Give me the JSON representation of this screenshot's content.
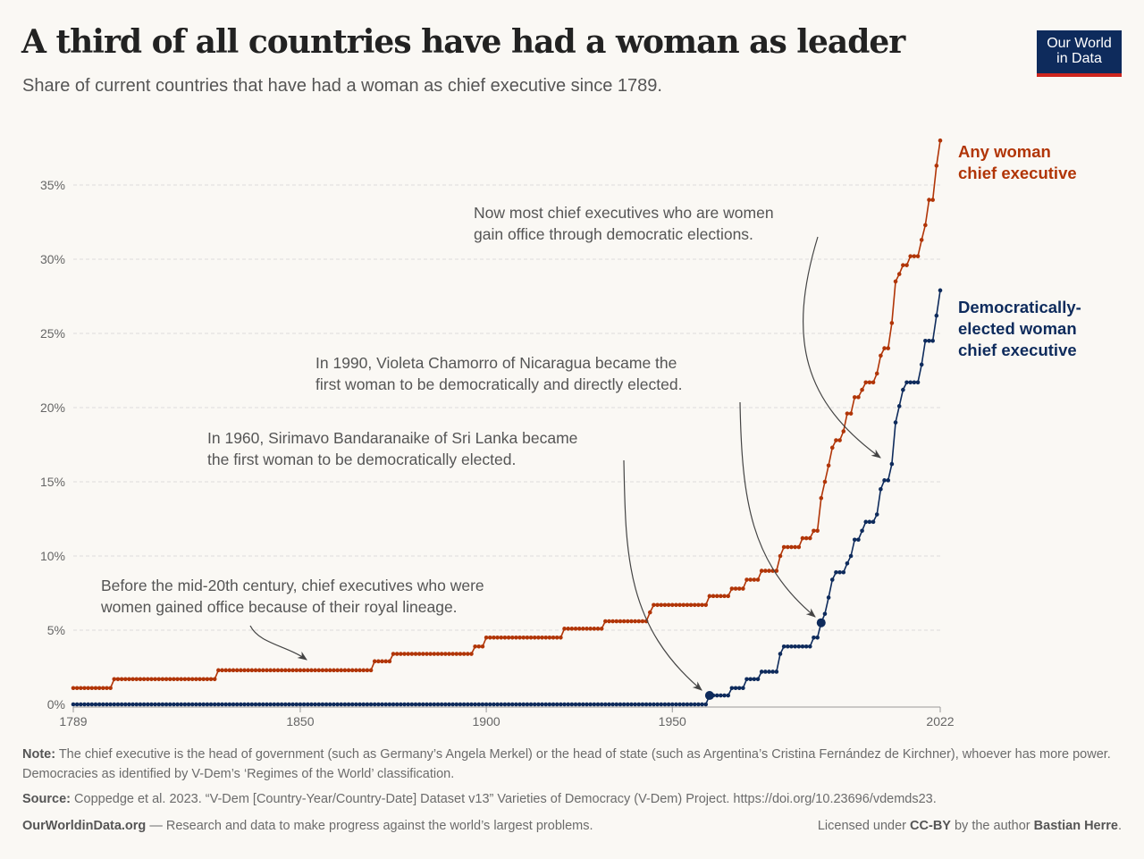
{
  "header": {
    "title": "A third of all countries have had a woman as leader",
    "subtitle": "Share of current countries that have had a woman as chief executive since 1789.",
    "logo_line1": "Our World",
    "logo_line2": "in Data"
  },
  "chart_data": {
    "type": "line",
    "title": "A third of all countries have had a woman as leader",
    "xlabel": "",
    "ylabel": "",
    "xlim": [
      1789,
      2022
    ],
    "ylim": [
      0,
      38
    ],
    "x_ticks": [
      "1789",
      "1850",
      "1900",
      "1950",
      "2022"
    ],
    "y_ticks": [
      "0%",
      "5%",
      "10%",
      "15%",
      "20%",
      "25%",
      "30%",
      "35%"
    ],
    "grid": "horizontal dashed",
    "series": [
      {
        "name": "Any woman chief executive",
        "label_lines": [
          "Any woman",
          "chief executive"
        ],
        "color": "#b13507",
        "steps": [
          [
            1789,
            1.1
          ],
          [
            1800,
            1.7
          ],
          [
            1828,
            2.3
          ],
          [
            1870,
            2.9
          ],
          [
            1875,
            3.4
          ],
          [
            1897,
            3.9
          ],
          [
            1900,
            4.5
          ],
          [
            1921,
            5.1
          ],
          [
            1932,
            5.6
          ],
          [
            1944,
            6.2
          ],
          [
            1945,
            6.7
          ],
          [
            1960,
            7.3
          ],
          [
            1966,
            7.8
          ],
          [
            1970,
            8.4
          ],
          [
            1974,
            9.0
          ],
          [
            1979,
            10.0
          ],
          [
            1980,
            10.6
          ],
          [
            1985,
            11.2
          ],
          [
            1988,
            11.7
          ],
          [
            1990,
            13.9
          ],
          [
            1991,
            15.0
          ],
          [
            1992,
            16.1
          ],
          [
            1993,
            17.3
          ],
          [
            1994,
            17.8
          ],
          [
            1996,
            18.4
          ],
          [
            1997,
            19.6
          ],
          [
            1999,
            20.7
          ],
          [
            2001,
            21.2
          ],
          [
            2002,
            21.7
          ],
          [
            2005,
            22.3
          ],
          [
            2006,
            23.5
          ],
          [
            2007,
            24.0
          ],
          [
            2009,
            25.7
          ],
          [
            2010,
            28.5
          ],
          [
            2011,
            29.0
          ],
          [
            2012,
            29.6
          ],
          [
            2014,
            30.2
          ],
          [
            2017,
            31.3
          ],
          [
            2018,
            32.3
          ],
          [
            2019,
            34.0
          ],
          [
            2021,
            36.3
          ],
          [
            2022,
            38.0
          ]
        ]
      },
      {
        "name": "Democratically-elected woman chief executive",
        "label_lines": [
          "Democratically-",
          "elected woman",
          "chief executive"
        ],
        "color": "#0e2b5c",
        "highlight_years": [
          1960,
          1990
        ],
        "steps": [
          [
            1789,
            0
          ],
          [
            1960,
            0.6
          ],
          [
            1966,
            1.1
          ],
          [
            1970,
            1.7
          ],
          [
            1974,
            2.2
          ],
          [
            1979,
            3.4
          ],
          [
            1980,
            3.9
          ],
          [
            1988,
            4.5
          ],
          [
            1990,
            5.5
          ],
          [
            1991,
            6.1
          ],
          [
            1992,
            7.2
          ],
          [
            1993,
            8.4
          ],
          [
            1994,
            8.9
          ],
          [
            1997,
            9.5
          ],
          [
            1998,
            10.0
          ],
          [
            1999,
            11.1
          ],
          [
            2001,
            11.7
          ],
          [
            2002,
            12.3
          ],
          [
            2005,
            12.8
          ],
          [
            2006,
            14.5
          ],
          [
            2007,
            15.1
          ],
          [
            2009,
            16.2
          ],
          [
            2010,
            19.0
          ],
          [
            2011,
            20.1
          ],
          [
            2012,
            21.2
          ],
          [
            2013,
            21.7
          ],
          [
            2017,
            22.9
          ],
          [
            2018,
            24.5
          ],
          [
            2021,
            26.2
          ],
          [
            2022,
            27.9
          ]
        ]
      }
    ],
    "annotations": [
      [
        "Before the mid-20th century, chief executives who were",
        "women gained office because of their royal lineage."
      ],
      [
        "In 1960, Sirimavo Bandaranaike of Sri Lanka became",
        "the first woman to be democratically elected."
      ],
      [
        "In 1990, Violeta Chamorro of Nicaragua became the",
        "first woman to be democratically and directly elected."
      ],
      [
        "Now most chief executives who are women",
        "gain office through democratic elections."
      ]
    ]
  },
  "footer": {
    "note_label": "Note:",
    "note": " The chief executive is the head of government (such as Germany’s Angela Merkel) or the head of state (such as Argentina’s Cristina Fernández de Kirchner), whoever has more power. Democracies as identified by V-Dem’s ‘Regimes of the World’ classification.",
    "source_label": "Source:",
    "source": " Coppedge et al. 2023. “V-Dem [Country-Year/Country-Date] Dataset v13” Varieties of Democracy (V-Dem) Project. https://doi.org/10.23696/vdemds23.",
    "site": "OurWorldinData.org",
    "mission": " — Research and data to make progress against the world’s largest problems.",
    "license_pre": "Licensed under ",
    "license": "CC-BY",
    "license_mid": " by the author ",
    "author": "Bastian Herre",
    "license_end": "."
  }
}
